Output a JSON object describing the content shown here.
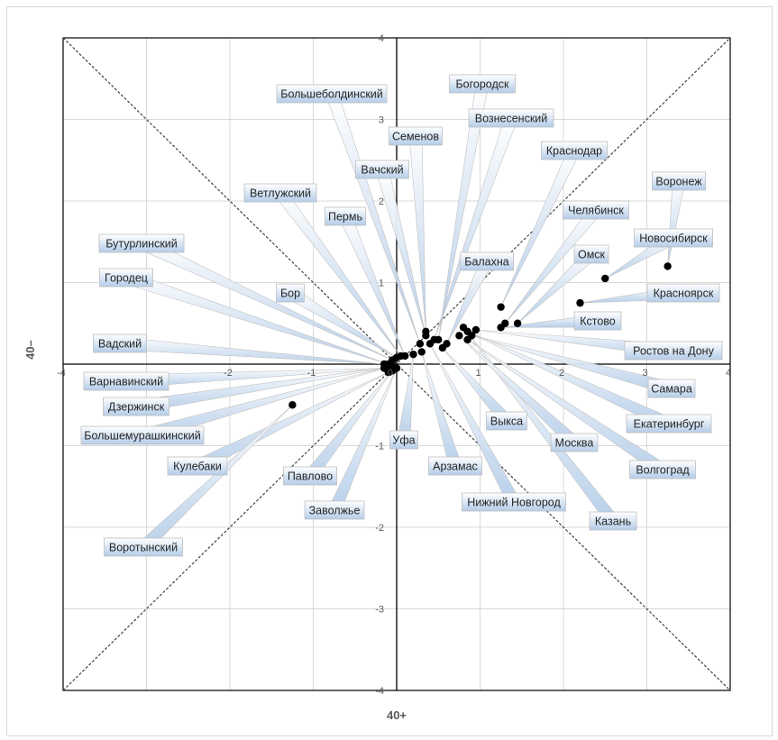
{
  "chart_data": {
    "type": "scatter",
    "title": "",
    "xlabel": "40+",
    "ylabel": "40–",
    "xlim": [
      -4,
      4
    ],
    "ylim": [
      -4,
      4
    ],
    "x_ticks": [
      "-4",
      "",
      "-2",
      "-1",
      "0",
      "1",
      "2",
      "3",
      "4"
    ],
    "y_ticks": [
      "-4",
      "-3",
      "-2",
      "-1",
      "0",
      "1",
      "2",
      "3",
      "4"
    ],
    "grid": true,
    "diagonals": true,
    "colors": {
      "grid": "#d9d9d9",
      "axis": "#000000",
      "diagonal": "#404040",
      "callout_fill_top": "#ffffff",
      "callout_fill_bottom": "#b4cde9",
      "callout_border": "#bfbfbf",
      "point": "#000000",
      "tick": "#595959"
    },
    "points": [
      {
        "name": "Воронеж",
        "x": 3.25,
        "y": 1.2
      },
      {
        "name": "Новосибирск",
        "x": 2.5,
        "y": 1.05
      },
      {
        "name": "Красноярск",
        "x": 2.2,
        "y": 0.75
      },
      {
        "name": "Омск",
        "x": 1.45,
        "y": 0.5
      },
      {
        "name": "Челябинск",
        "x": 1.3,
        "y": 0.5
      },
      {
        "name": "Краснодар",
        "x": 1.25,
        "y": 0.7
      },
      {
        "name": "Кстово",
        "x": 1.25,
        "y": 0.45
      },
      {
        "name": "Ростов на Дону",
        "x": 0.95,
        "y": 0.42
      },
      {
        "name": "Самара",
        "x": 0.9,
        "y": 0.35
      },
      {
        "name": "Екатеринбург",
        "x": 0.85,
        "y": 0.4
      },
      {
        "name": "Волгоград",
        "x": 0.85,
        "y": 0.3
      },
      {
        "name": "Казань",
        "x": 0.8,
        "y": 0.45
      },
      {
        "name": "Москва",
        "x": 0.75,
        "y": 0.35
      },
      {
        "name": "Балахна",
        "x": 0.6,
        "y": 0.25
      },
      {
        "name": "Выкса",
        "x": 0.55,
        "y": 0.2
      },
      {
        "name": "Богородск",
        "x": 0.5,
        "y": 0.3
      },
      {
        "name": "Вознесенский",
        "x": 0.45,
        "y": 0.3
      },
      {
        "name": "Нижний Новгород",
        "x": 0.4,
        "y": 0.25
      },
      {
        "name": "Семенов",
        "x": 0.35,
        "y": 0.4
      },
      {
        "name": "Арзамас",
        "x": 0.3,
        "y": 0.15
      },
      {
        "name": "Вачский",
        "x": 0.35,
        "y": 0.35
      },
      {
        "name": "Большеболдинский",
        "x": 0.28,
        "y": 0.25
      },
      {
        "name": "Уфа",
        "x": 0.2,
        "y": 0.12
      },
      {
        "name": "Пермь",
        "x": 0.1,
        "y": 0.1
      },
      {
        "name": "Ветлужский",
        "x": 0.05,
        "y": 0.1
      },
      {
        "name": "Бор",
        "x": 0.0,
        "y": 0.08
      },
      {
        "name": "Бутурлинский",
        "x": -0.05,
        "y": 0.05
      },
      {
        "name": "Городец",
        "x": -0.1,
        "y": 0.0
      },
      {
        "name": "Вадский",
        "x": -0.15,
        "y": 0.0
      },
      {
        "name": "Варнавинский",
        "x": -0.1,
        "y": -0.05
      },
      {
        "name": "Павлово",
        "x": -0.05,
        "y": -0.08
      },
      {
        "name": "Заволжье",
        "x": 0.0,
        "y": -0.05
      },
      {
        "name": "Дзержинск",
        "x": -0.05,
        "y": -0.03
      },
      {
        "name": "Кулебаки",
        "x": -0.1,
        "y": -0.1
      },
      {
        "name": "Большемурашкинский",
        "x": -0.15,
        "y": -0.05
      },
      {
        "name": "Воротынский",
        "x": -1.25,
        "y": -0.5
      }
    ]
  }
}
